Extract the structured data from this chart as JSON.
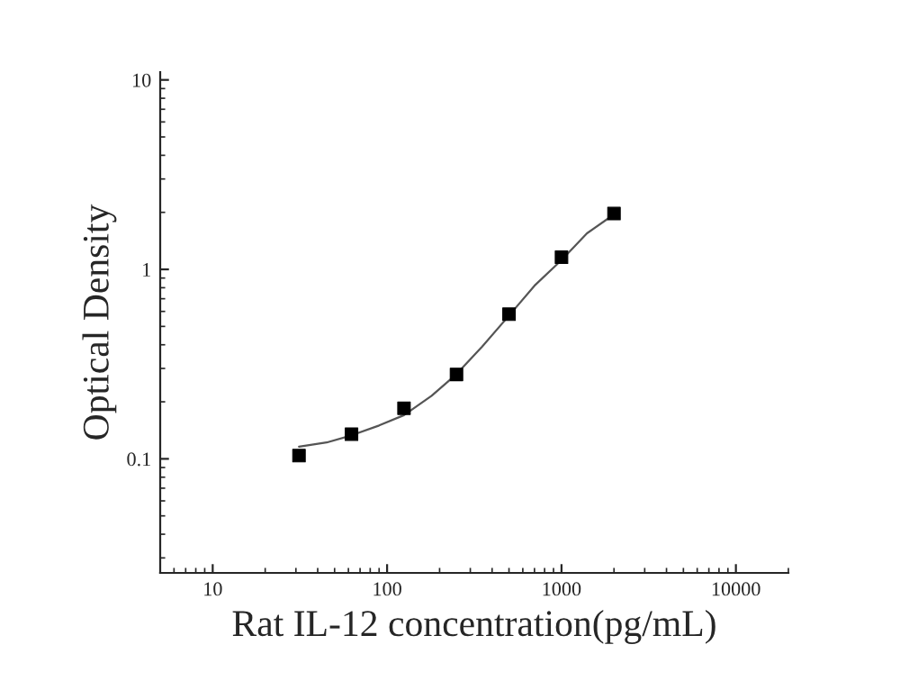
{
  "chart_data": {
    "type": "scatter",
    "xlabel": "Rat IL-12 concentration(pg/mL)",
    "ylabel": "Optical Density",
    "log": "xy",
    "xlim": [
      5,
      20000
    ],
    "xticks": [
      10,
      100,
      1000,
      10000
    ],
    "ylim": [
      0.025,
      11
    ],
    "yticks": [
      0.1,
      1,
      10
    ],
    "grid": false,
    "legend": false,
    "series": [
      {
        "marker": "square",
        "color": "#000000",
        "x": [
          31.25,
          62.5,
          125,
          250,
          500,
          1000,
          2000
        ],
        "values": [
          0.104,
          0.135,
          0.185,
          0.279,
          0.58,
          1.16,
          1.97
        ]
      },
      {
        "type": "line",
        "color": "#555555",
        "line_style": "solid",
        "x": [
          31.25,
          45,
          62.5,
          90,
          125,
          180,
          250,
          350,
          500,
          700,
          1000,
          1400,
          2000
        ],
        "values": [
          0.116,
          0.122,
          0.133,
          0.15,
          0.17,
          0.215,
          0.28,
          0.39,
          0.57,
          0.82,
          1.12,
          1.55,
          1.95
        ]
      }
    ]
  }
}
